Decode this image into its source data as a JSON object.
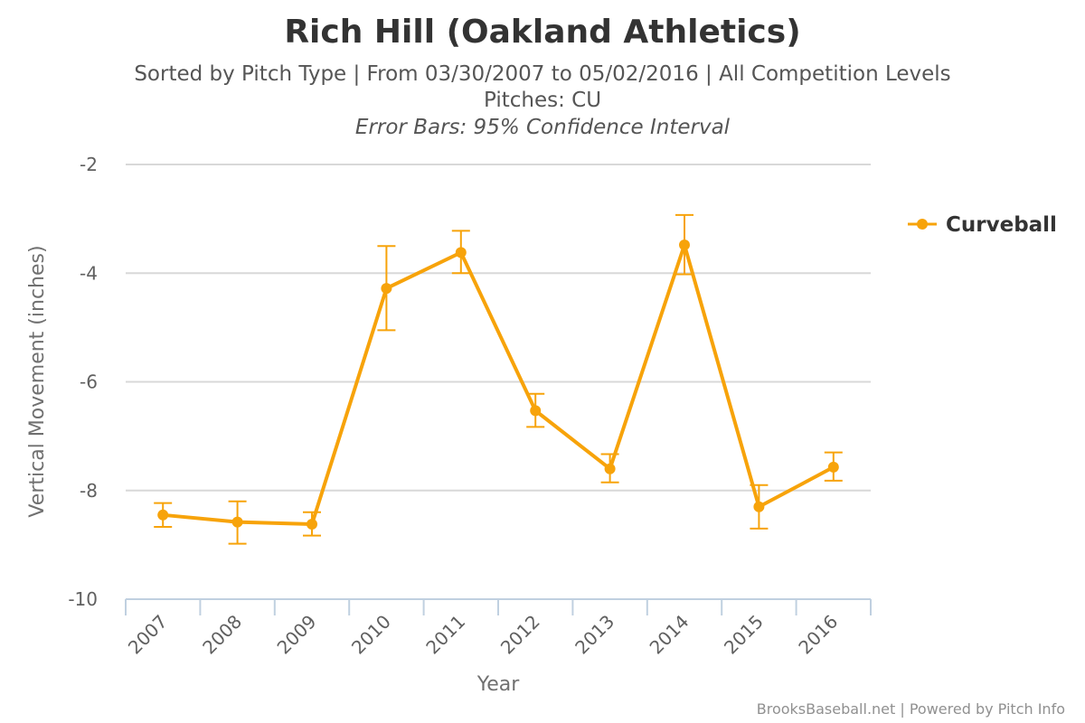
{
  "chart_data": {
    "type": "line",
    "title": "Rich Hill (Oakland Athletics)",
    "subtitle": "Sorted by Pitch Type | From 03/30/2007 to 05/02/2016 | All Competition Levels",
    "subtitle2": "Pitches: CU",
    "subtitle3": "Error Bars: 95% Confidence Interval",
    "xlabel": "Year",
    "ylabel": "Vertical Movement (inches)",
    "categories": [
      "2007",
      "2008",
      "2009",
      "2010",
      "2011",
      "2012",
      "2013",
      "2014",
      "2015",
      "2016"
    ],
    "ylim": [
      -10,
      -2
    ],
    "yticks": [
      -2,
      -4,
      -6,
      -8,
      -10
    ],
    "grid": true,
    "legend_position": "right",
    "series": [
      {
        "name": "Curveball",
        "color": "#F7A30A",
        "values": [
          -8.45,
          -8.58,
          -8.62,
          -4.28,
          -3.62,
          -6.53,
          -7.6,
          -3.48,
          -8.3,
          -7.57
        ],
        "error_low": [
          -8.67,
          -8.98,
          -8.83,
          -5.05,
          -4.0,
          -6.83,
          -7.85,
          -4.02,
          -8.7,
          -7.82
        ],
        "error_high": [
          -8.23,
          -8.2,
          -8.4,
          -3.5,
          -3.22,
          -6.22,
          -7.33,
          -2.93,
          -7.9,
          -7.3
        ]
      }
    ]
  },
  "credits": "BrooksBaseball.net | Powered by Pitch Info"
}
